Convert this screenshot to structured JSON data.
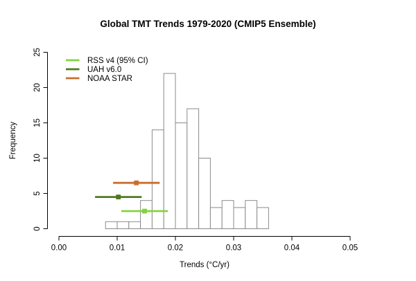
{
  "figure": {
    "background": "#ffffff",
    "axis_color": "#000000",
    "bar_fill": "#ffffff",
    "bar_border": "#8a8a8a"
  },
  "chart_data": {
    "type": "bar",
    "subtype": "histogram",
    "title": "Global TMT Trends 1979-2020 (CMIP5 Ensemble)",
    "xlabel": "Trends (°C/yr)",
    "ylabel": "Frequency",
    "xlim": [
      0.0,
      0.05
    ],
    "ylim": [
      0,
      25
    ],
    "grid": false,
    "x_ticks": [
      0.0,
      0.01,
      0.02,
      0.03,
      0.04,
      0.05
    ],
    "x_tick_labels": [
      "0.00",
      "0.01",
      "0.02",
      "0.03",
      "0.04",
      "0.05"
    ],
    "y_ticks": [
      0,
      5,
      10,
      15,
      20,
      25
    ],
    "y_tick_labels": [
      "0",
      "5",
      "10",
      "15",
      "20",
      "25"
    ],
    "bin_width": 0.002,
    "bin_edges": [
      0.008,
      0.01,
      0.012,
      0.014,
      0.016,
      0.018,
      0.02,
      0.022,
      0.024,
      0.026,
      0.028,
      0.03,
      0.032,
      0.034,
      0.036
    ],
    "counts": [
      1,
      1,
      1,
      4,
      14,
      22,
      15,
      17,
      10,
      3,
      4,
      3,
      4,
      3
    ],
    "legend_position": "top-left",
    "legend": [
      {
        "label": "RSS v4 (95% CI)",
        "color": "#84D23E"
      },
      {
        "label": "UAH v6.0",
        "color": "#4E7A1E"
      },
      {
        "label": "NOAA STAR",
        "color": "#C96E2E"
      }
    ],
    "error_bars": [
      {
        "name": "NOAA STAR",
        "center": 0.0133,
        "ci_low": 0.0093,
        "ci_high": 0.0173,
        "y": 6.5,
        "color": "#C96E2E"
      },
      {
        "name": "UAH v6.0",
        "center": 0.0102,
        "ci_low": 0.0062,
        "ci_high": 0.0142,
        "y": 4.5,
        "color": "#4E7A1E"
      },
      {
        "name": "RSS v4 (95% CI)",
        "center": 0.0147,
        "ci_low": 0.0107,
        "ci_high": 0.0187,
        "y": 2.5,
        "color": "#84D23E"
      }
    ]
  }
}
